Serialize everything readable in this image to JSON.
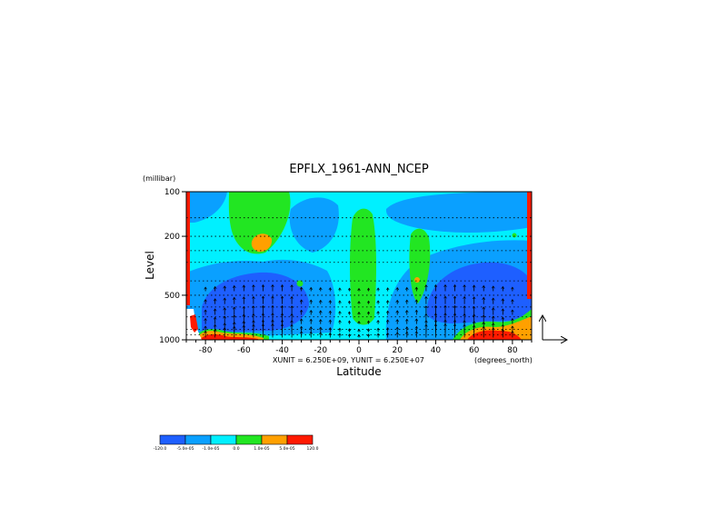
{
  "chart_data": {
    "type": "heatmap",
    "title": "EPFLX_1961-ANN_NCEP",
    "xlabel": "Latitude",
    "ylabel": "Level",
    "y_units": "(millibar)",
    "x_units": "(degrees_north)",
    "x_ticks": [
      -80,
      -60,
      -40,
      -20,
      0,
      20,
      40,
      60,
      80
    ],
    "y_ticks": [
      100,
      200,
      500,
      1000
    ],
    "xlim": [
      -90,
      90
    ],
    "ylim": [
      1000,
      100
    ],
    "y_scale": "log",
    "grid": true,
    "vector_units": "XUNIT = 6.250E+09, YUNIT = 6.250E+07",
    "colorbar": {
      "colors": [
        "#1e5fff",
        "#0aa0ff",
        "#00f0ff",
        "#22e622",
        "#ffa000",
        "#ff1a00"
      ],
      "labels": [
        "-120.0",
        "-5.0e-05",
        "-1.0e-05",
        "0.0",
        "1.0e-05",
        "5.0e-05",
        "120.0"
      ]
    }
  }
}
